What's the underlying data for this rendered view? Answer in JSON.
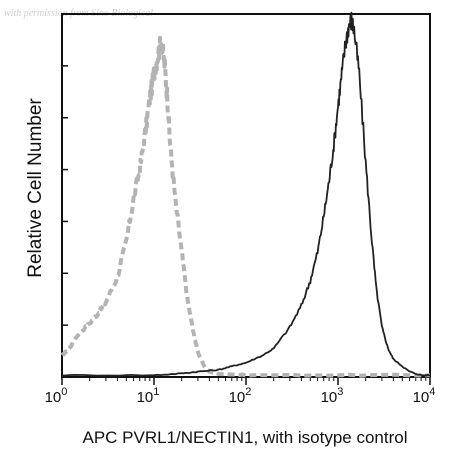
{
  "watermark": "with permission from Sino Biological",
  "chart_data": {
    "type": "line",
    "xlabel": "APC PVRL1/NECTIN1, with isotype control",
    "ylabel": "Relative Cell Number",
    "x_scale": "log",
    "xlim": [
      1,
      10000
    ],
    "ylim": [
      0,
      1
    ],
    "x_tick_labels": [
      {
        "base": "10",
        "exp": "0",
        "value": 1
      },
      {
        "base": "10",
        "exp": "1",
        "value": 10
      },
      {
        "base": "10",
        "exp": "2",
        "value": 100
      },
      {
        "base": "10",
        "exp": "3",
        "value": 1000
      },
      {
        "base": "10",
        "exp": "4",
        "value": 10000
      }
    ],
    "grid": false,
    "legend": "none",
    "series": [
      {
        "color": "#b3b3b3",
        "style": "dashed",
        "x": [
          1,
          1.2,
          1.5,
          2,
          2.5,
          3,
          4,
          5,
          6,
          7,
          8,
          9,
          10,
          11,
          12,
          13,
          14,
          15,
          17,
          20,
          23,
          27,
          30,
          35,
          40,
          50,
          100,
          1000,
          10000
        ],
        "y": [
          0.06,
          0.08,
          0.12,
          0.15,
          0.18,
          0.21,
          0.28,
          0.38,
          0.5,
          0.58,
          0.68,
          0.78,
          0.85,
          0.9,
          0.94,
          0.88,
          0.78,
          0.65,
          0.5,
          0.35,
          0.22,
          0.12,
          0.07,
          0.03,
          0.015,
          0.01,
          0.005,
          0.005,
          0.005
        ]
      },
      {
        "color": "#222222",
        "style": "solid",
        "x": [
          1,
          10,
          20,
          30,
          50,
          70,
          100,
          150,
          200,
          300,
          400,
          500,
          600,
          700,
          800,
          900,
          1000,
          1100,
          1200,
          1300,
          1400,
          1500,
          1700,
          2000,
          2300,
          2600,
          3000,
          3500,
          4000,
          5000,
          6000,
          8000,
          10000
        ],
        "y": [
          0.005,
          0.005,
          0.01,
          0.015,
          0.02,
          0.03,
          0.04,
          0.06,
          0.08,
          0.14,
          0.2,
          0.27,
          0.35,
          0.45,
          0.55,
          0.65,
          0.76,
          0.85,
          0.93,
          0.98,
          1.0,
          0.97,
          0.85,
          0.6,
          0.4,
          0.25,
          0.14,
          0.08,
          0.05,
          0.03,
          0.015,
          0.005,
          0.005
        ]
      }
    ]
  }
}
